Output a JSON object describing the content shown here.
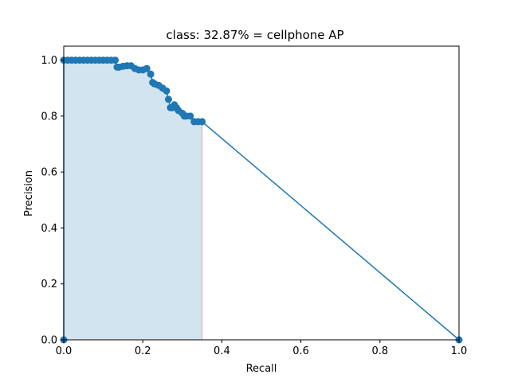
{
  "chart_data": {
    "type": "line",
    "title": "class: 32.87% = cellphone AP",
    "xlabel": "Recall",
    "ylabel": "Precision",
    "xlim": [
      0.0,
      1.0
    ],
    "ylim": [
      0.0,
      1.05
    ],
    "xticks": [
      0.0,
      0.2,
      0.4,
      0.6,
      0.8,
      1.0
    ],
    "yticks": [
      0.0,
      0.2,
      0.4,
      0.6,
      0.8,
      1.0
    ],
    "xtick_labels": [
      "0.0",
      "0.2",
      "0.4",
      "0.6",
      "0.8",
      "1.0"
    ],
    "ytick_labels": [
      "0.0",
      "0.2",
      "0.4",
      "0.6",
      "0.8",
      "1.0"
    ],
    "line_color": "#1f77b4",
    "fill_color": "#1f77b4",
    "fill_opacity": 0.2,
    "vline_color": "#e8a0a0",
    "grid": false,
    "series": [
      {
        "x": [
          0.0,
          0.0,
          0.01,
          0.02,
          0.03,
          0.04,
          0.05,
          0.06,
          0.07,
          0.08,
          0.09,
          0.1,
          0.11,
          0.12,
          0.13,
          0.135,
          0.14,
          0.15,
          0.16,
          0.17,
          0.18,
          0.19,
          0.2,
          0.21,
          0.22,
          0.225,
          0.23,
          0.24,
          0.25,
          0.26,
          0.265,
          0.27,
          0.275,
          0.28,
          0.285,
          0.29,
          0.3,
          0.305,
          0.31,
          0.32,
          0.33,
          0.34,
          0.35,
          1.0
        ],
        "y": [
          0.0,
          1.0,
          1.0,
          1.0,
          1.0,
          1.0,
          1.0,
          1.0,
          1.0,
          1.0,
          1.0,
          1.0,
          1.0,
          1.0,
          1.0,
          0.975,
          0.975,
          0.978,
          0.98,
          0.98,
          0.97,
          0.965,
          0.965,
          0.97,
          0.95,
          0.92,
          0.915,
          0.91,
          0.9,
          0.89,
          0.86,
          0.83,
          0.83,
          0.84,
          0.83,
          0.82,
          0.81,
          0.8,
          0.8,
          0.8,
          0.78,
          0.78,
          0.78,
          0.0
        ]
      }
    ],
    "fill_to_x": 0.35
  }
}
